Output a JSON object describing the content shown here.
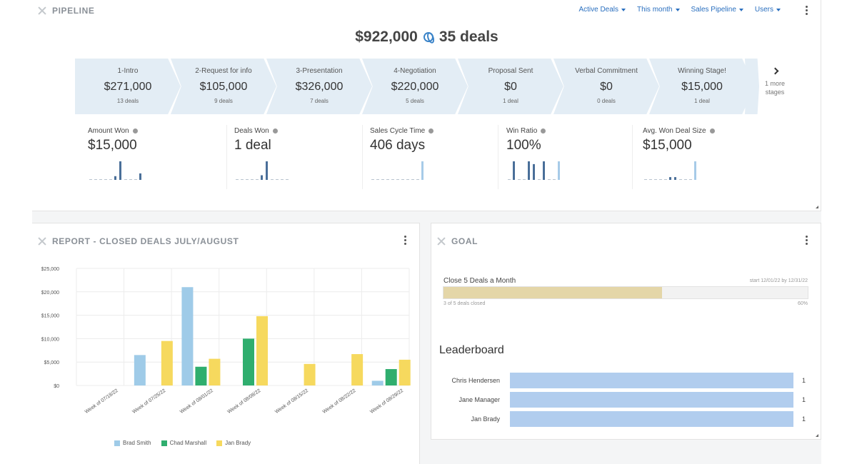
{
  "pipeline": {
    "title": "PIPELINE",
    "filters": [
      "Active Deals",
      "This month",
      "Sales Pipeline",
      "Users"
    ],
    "total_amount": "$922,000",
    "total_deals": "35 deals",
    "stages": [
      {
        "name": "1-Intro",
        "value": "$271,000",
        "deals": "13 deals"
      },
      {
        "name": "2-Request for info",
        "value": "$105,000",
        "deals": "9 deals"
      },
      {
        "name": "3-Presentation",
        "value": "$326,000",
        "deals": "7 deals"
      },
      {
        "name": "4-Negotiation",
        "value": "$220,000",
        "deals": "5 deals"
      },
      {
        "name": "Proposal Sent",
        "value": "$0",
        "deals": "1 deal"
      },
      {
        "name": "Verbal Commitment",
        "value": "$0",
        "deals": "0 deals"
      },
      {
        "name": "Winning Stage!",
        "value": "$15,000",
        "deals": "1 deal"
      }
    ],
    "more_stages": "1 more stages",
    "metrics": [
      {
        "label": "Amount Won",
        "value": "$15,000",
        "spark": [
          0,
          0,
          0,
          0,
          0,
          0.2,
          1,
          0,
          0,
          0,
          0.35
        ]
      },
      {
        "label": "Deals Won",
        "value": "1 deal",
        "spark": [
          0,
          0,
          0,
          0,
          0,
          0.25,
          1,
          0,
          0,
          0,
          0
        ]
      },
      {
        "label": "Sales Cycle Time",
        "value": "406 days",
        "spark": [
          0,
          0,
          0,
          0,
          0,
          0,
          0,
          0,
          0,
          0,
          1
        ]
      },
      {
        "label": "Win Ratio",
        "value": "100%",
        "spark": [
          0,
          1,
          0,
          0,
          1,
          0.85,
          0,
          1,
          0,
          0,
          1
        ]
      },
      {
        "label": "Avg. Won Deal Size",
        "value": "$15,000",
        "spark": [
          0,
          0,
          0,
          0,
          0,
          0.15,
          0.15,
          0,
          0,
          0,
          1
        ]
      }
    ]
  },
  "report": {
    "title": "REPORT - CLOSED DEALS JULY/AUGUST"
  },
  "chart_data": {
    "type": "bar",
    "categories": [
      "Week of 07/18/22",
      "Week of 07/25/22",
      "Week of 08/01/22",
      "Week of 08/08/22",
      "Week of 08/15/22",
      "Week of 08/22/22",
      "Week of 08/29/22"
    ],
    "series": [
      {
        "name": "Brad Smith",
        "color": "#9fcbe8",
        "values": [
          0,
          6500,
          21000,
          0,
          0,
          0,
          1000
        ]
      },
      {
        "name": "Chad Marshall",
        "color": "#2fae6e",
        "values": [
          0,
          0,
          4000,
          10000,
          0,
          0,
          3500
        ]
      },
      {
        "name": "Jan Brady",
        "color": "#f6d95e",
        "values": [
          0,
          9500,
          5700,
          14800,
          4600,
          6700,
          5500
        ]
      }
    ],
    "y_ticks": [
      "$0",
      "$5,000",
      "$10,000",
      "$15,000",
      "$20,000",
      "$25,000"
    ],
    "ylim": [
      0,
      25000
    ],
    "grid": true,
    "legend": "bottom"
  },
  "goal": {
    "title": "GOAL",
    "name": "Close 5 Deals a Month",
    "dates": "start 12/01/22 by 12/31/22",
    "subtext": "3 of 5 deals closed",
    "percent_label": "60%",
    "progress": 0.6,
    "leaderboard_title": "Leaderboard",
    "leaderboard": [
      {
        "name": "Chris Hendersen",
        "count": "1"
      },
      {
        "name": "Jane Manager",
        "count": "1"
      },
      {
        "name": "Jan Brady",
        "count": "1"
      }
    ]
  }
}
